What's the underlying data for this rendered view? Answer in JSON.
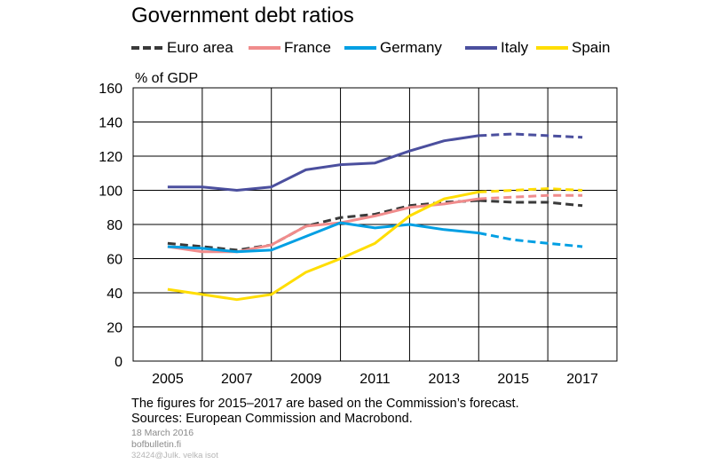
{
  "header": {
    "title": "Government debt ratios"
  },
  "legend": [
    {
      "label": "Euro area",
      "color": "#3a3a3a",
      "style": "dashed"
    },
    {
      "label": "France",
      "color": "#f08c8c",
      "style": "solid"
    },
    {
      "label": "Germany",
      "color": "#009fe3",
      "style": "solid"
    },
    {
      "label": "Italy",
      "color": "#4b4f9e",
      "style": "solid"
    },
    {
      "label": "Spain",
      "color": "#ffdd00",
      "style": "solid"
    }
  ],
  "footer": {
    "note": "The figures for 2015–2017 are based on the Commission’s forecast.",
    "sources": "Sources: European Commission and Macrobond.",
    "date": "18 March 2016",
    "site": "bofbulletin.fi",
    "code": "32424@Julk. velka isot"
  },
  "chart_data": {
    "type": "line",
    "title": "Government debt ratios",
    "ylabel": "% of GDP",
    "xlabel": "",
    "ylim": [
      0,
      160
    ],
    "yticks": [
      0,
      20,
      40,
      60,
      80,
      100,
      120,
      140,
      160
    ],
    "xlim": [
      2004,
      2018
    ],
    "xticks": [
      2005,
      2007,
      2009,
      2011,
      2013,
      2015,
      2017
    ],
    "grid": true,
    "legend_position": "top",
    "forecast_from": 2014,
    "x": [
      2005,
      2006,
      2007,
      2008,
      2009,
      2010,
      2011,
      2012,
      2013,
      2014,
      2015,
      2016,
      2017
    ],
    "series": [
      {
        "name": "Euro area",
        "color": "#3a3a3a",
        "dashed": true,
        "values": [
          69,
          67,
          65,
          68,
          79,
          84,
          86,
          91,
          93,
          94,
          93,
          93,
          91
        ]
      },
      {
        "name": "France",
        "color": "#f08c8c",
        "values": [
          67,
          64,
          64,
          68,
          79,
          81,
          85,
          90,
          92,
          95,
          96,
          97,
          97
        ]
      },
      {
        "name": "Germany",
        "color": "#009fe3",
        "values": [
          67,
          66,
          64,
          65,
          73,
          81,
          78,
          80,
          77,
          75,
          71,
          69,
          67
        ]
      },
      {
        "name": "Italy",
        "color": "#4b4f9e",
        "values": [
          102,
          102,
          100,
          102,
          112,
          115,
          116,
          123,
          129,
          132,
          133,
          132,
          131
        ]
      },
      {
        "name": "Spain",
        "color": "#ffdd00",
        "values": [
          42,
          39,
          36,
          39,
          52,
          60,
          69,
          85,
          95,
          99,
          100,
          101,
          100
        ]
      }
    ]
  }
}
